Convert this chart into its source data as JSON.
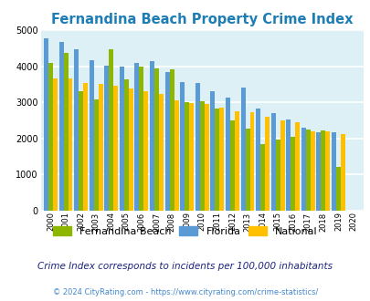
{
  "title": "Fernandina Beach Property Crime Index",
  "years": [
    2000,
    2001,
    2002,
    2003,
    2004,
    2005,
    2006,
    2007,
    2008,
    2009,
    2010,
    2011,
    2012,
    2013,
    2014,
    2015,
    2016,
    2017,
    2018,
    2019,
    2020
  ],
  "fernandina": [
    4080,
    4380,
    3320,
    3090,
    4480,
    3630,
    3990,
    3940,
    3920,
    3000,
    3040,
    2840,
    2500,
    2280,
    1840,
    1980,
    2040,
    2250,
    2210,
    1200,
    0
  ],
  "florida": [
    4780,
    4670,
    4480,
    4160,
    4020,
    4000,
    4100,
    4140,
    3850,
    3570,
    3530,
    3310,
    3140,
    3420,
    2820,
    2700,
    2520,
    2290,
    2160,
    2160,
    0
  ],
  "national": [
    3670,
    3660,
    3530,
    3500,
    3460,
    3380,
    3300,
    3220,
    3050,
    2990,
    2960,
    2860,
    2760,
    2720,
    2600,
    2490,
    2460,
    2200,
    2190,
    2130,
    0
  ],
  "fernandina_color": "#8DB600",
  "florida_color": "#5B9BD5",
  "national_color": "#FFC000",
  "bg_color": "#DDF0F5",
  "title_color": "#1E7DB5",
  "grid_color": "#FFFFFF",
  "ylim": [
    0,
    5000
  ],
  "yticks": [
    0,
    1000,
    2000,
    3000,
    4000,
    5000
  ],
  "footnote1": "Crime Index corresponds to incidents per 100,000 inhabitants",
  "footnote2": "© 2024 CityRating.com - https://www.cityrating.com/crime-statistics/",
  "footnote1_color": "#1A237E",
  "footnote2_color": "#4488CC",
  "legend_labels": [
    "Fernandina Beach",
    "Florida",
    "National"
  ]
}
